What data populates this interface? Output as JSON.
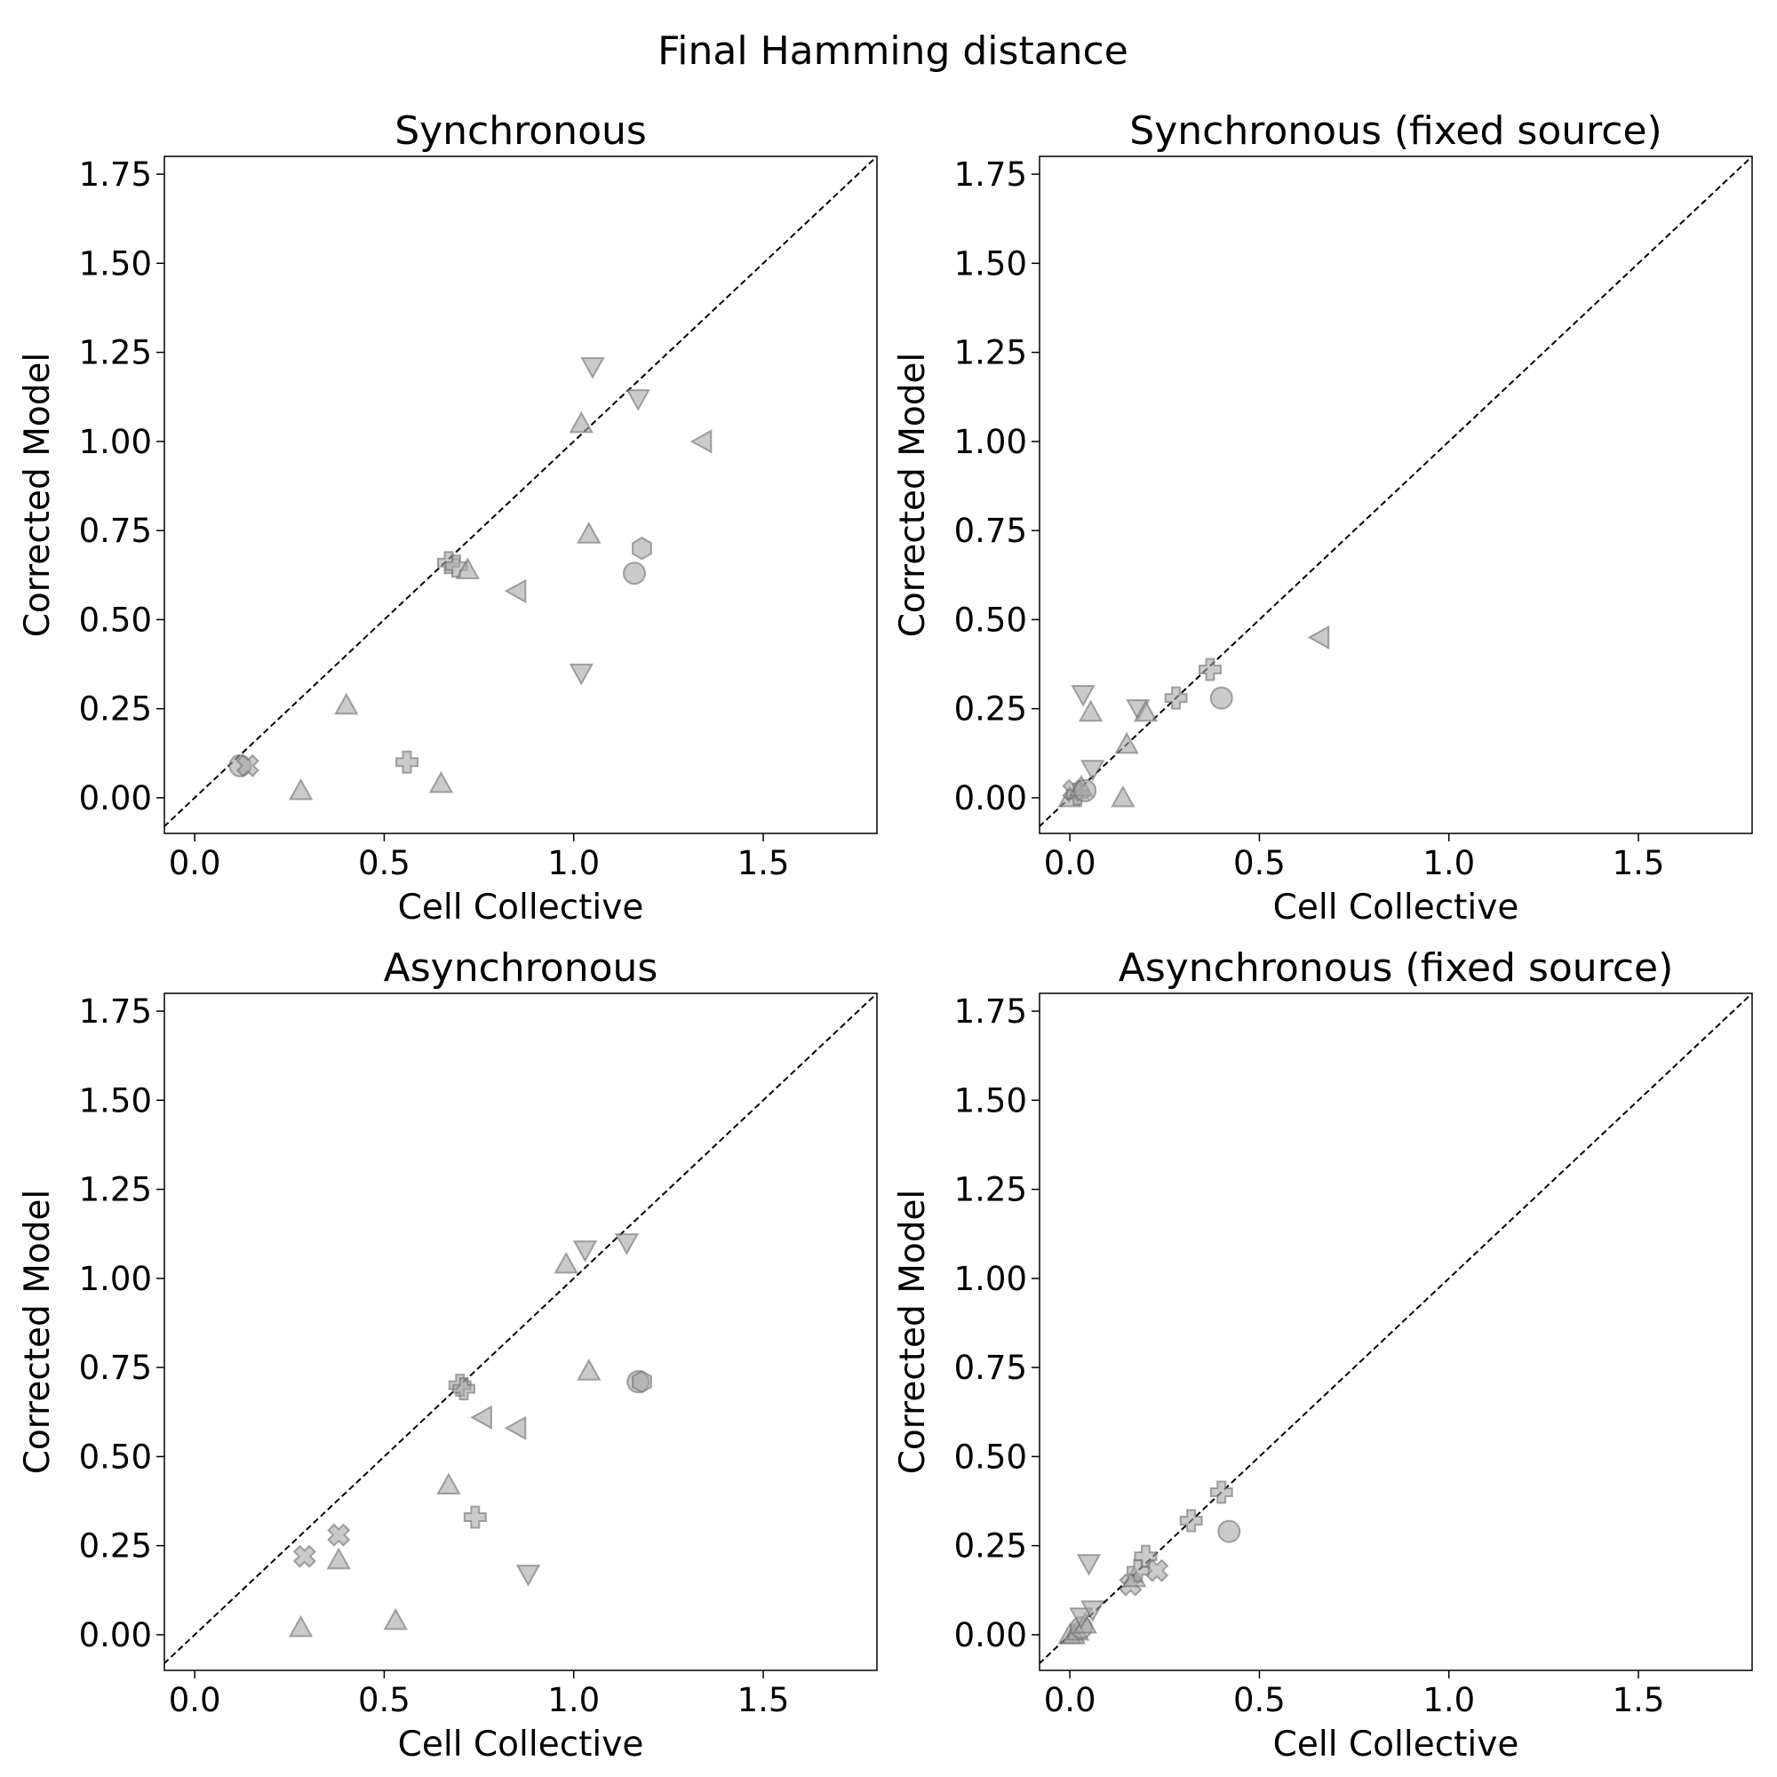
{
  "suptitle": "Final Hamming distance",
  "chart_data": [
    {
      "type": "scatter",
      "title": "Synchronous",
      "xlabel": "Cell Collective",
      "ylabel": "Corrected Model",
      "xlim": [
        -0.08,
        1.8
      ],
      "ylim": [
        -0.1,
        1.8
      ],
      "xticks": [
        "0.0",
        "0.5",
        "1.0",
        "1.5"
      ],
      "yticks": [
        "0.00",
        "0.25",
        "0.50",
        "0.75",
        "1.00",
        "1.25",
        "1.50",
        "1.75"
      ],
      "diagonal": "y = x (dashed)",
      "points": [
        {
          "x": 0.12,
          "y": 0.09,
          "marker": "circle"
        },
        {
          "x": 0.14,
          "y": 0.09,
          "marker": "x"
        },
        {
          "x": 0.28,
          "y": 0.02,
          "marker": "triangle-up"
        },
        {
          "x": 0.4,
          "y": 0.26,
          "marker": "triangle-up"
        },
        {
          "x": 0.56,
          "y": 0.1,
          "marker": "plus"
        },
        {
          "x": 0.65,
          "y": 0.04,
          "marker": "triangle-up"
        },
        {
          "x": 0.67,
          "y": 0.66,
          "marker": "plus"
        },
        {
          "x": 0.69,
          "y": 0.65,
          "marker": "plus"
        },
        {
          "x": 0.72,
          "y": 0.64,
          "marker": "triangle-up"
        },
        {
          "x": 0.85,
          "y": 0.58,
          "marker": "triangle-left"
        },
        {
          "x": 1.02,
          "y": 0.35,
          "marker": "triangle-down"
        },
        {
          "x": 1.02,
          "y": 1.05,
          "marker": "triangle-up"
        },
        {
          "x": 1.04,
          "y": 0.74,
          "marker": "triangle-up"
        },
        {
          "x": 1.05,
          "y": 1.21,
          "marker": "triangle-down"
        },
        {
          "x": 1.16,
          "y": 0.63,
          "marker": "circle"
        },
        {
          "x": 1.17,
          "y": 1.12,
          "marker": "triangle-down"
        },
        {
          "x": 1.18,
          "y": 0.7,
          "marker": "hexagon"
        },
        {
          "x": 1.34,
          "y": 1.0,
          "marker": "triangle-left"
        }
      ]
    },
    {
      "type": "scatter",
      "title": "Synchronous (fixed source)",
      "xlabel": "Cell Collective",
      "ylabel": "Corrected Model",
      "xlim": [
        -0.08,
        1.8
      ],
      "ylim": [
        -0.1,
        1.8
      ],
      "xticks": [
        "0.0",
        "0.5",
        "1.0",
        "1.5"
      ],
      "yticks": [
        "0.00",
        "0.25",
        "0.50",
        "0.75",
        "1.00",
        "1.25",
        "1.50",
        "1.75"
      ],
      "diagonal": "y = x (dashed)",
      "points": [
        {
          "x": 0.0,
          "y": 0.0,
          "marker": "triangle-up"
        },
        {
          "x": 0.01,
          "y": 0.02,
          "marker": "x"
        },
        {
          "x": 0.02,
          "y": 0.01,
          "marker": "plus"
        },
        {
          "x": 0.03,
          "y": 0.03,
          "marker": "triangle-up"
        },
        {
          "x": 0.04,
          "y": 0.02,
          "marker": "circle"
        },
        {
          "x": 0.035,
          "y": 0.29,
          "marker": "triangle-down"
        },
        {
          "x": 0.055,
          "y": 0.24,
          "marker": "triangle-up"
        },
        {
          "x": 0.06,
          "y": 0.08,
          "marker": "triangle-down"
        },
        {
          "x": 0.14,
          "y": 0.0,
          "marker": "triangle-up"
        },
        {
          "x": 0.15,
          "y": 0.15,
          "marker": "triangle-up"
        },
        {
          "x": 0.18,
          "y": 0.25,
          "marker": "triangle-down"
        },
        {
          "x": 0.2,
          "y": 0.24,
          "marker": "triangle-up"
        },
        {
          "x": 0.28,
          "y": 0.28,
          "marker": "plus"
        },
        {
          "x": 0.37,
          "y": 0.36,
          "marker": "plus"
        },
        {
          "x": 0.4,
          "y": 0.28,
          "marker": "circle"
        },
        {
          "x": 0.66,
          "y": 0.45,
          "marker": "triangle-left"
        }
      ]
    },
    {
      "type": "scatter",
      "title": "Asynchronous",
      "xlabel": "Cell Collective",
      "ylabel": "Corrected Model",
      "xlim": [
        -0.08,
        1.8
      ],
      "ylim": [
        -0.1,
        1.8
      ],
      "xticks": [
        "0.0",
        "0.5",
        "1.0",
        "1.5"
      ],
      "yticks": [
        "0.00",
        "0.25",
        "0.50",
        "0.75",
        "1.00",
        "1.25",
        "1.50",
        "1.75"
      ],
      "diagonal": "y = x (dashed)",
      "points": [
        {
          "x": 0.28,
          "y": 0.02,
          "marker": "triangle-up"
        },
        {
          "x": 0.29,
          "y": 0.22,
          "marker": "x"
        },
        {
          "x": 0.38,
          "y": 0.21,
          "marker": "triangle-up"
        },
        {
          "x": 0.38,
          "y": 0.28,
          "marker": "x"
        },
        {
          "x": 0.53,
          "y": 0.04,
          "marker": "triangle-up"
        },
        {
          "x": 0.67,
          "y": 0.42,
          "marker": "triangle-up"
        },
        {
          "x": 0.7,
          "y": 0.7,
          "marker": "plus"
        },
        {
          "x": 0.71,
          "y": 0.69,
          "marker": "plus"
        },
        {
          "x": 0.74,
          "y": 0.33,
          "marker": "plus"
        },
        {
          "x": 0.76,
          "y": 0.61,
          "marker": "triangle-left"
        },
        {
          "x": 0.85,
          "y": 0.58,
          "marker": "triangle-left"
        },
        {
          "x": 0.88,
          "y": 0.17,
          "marker": "triangle-down"
        },
        {
          "x": 0.98,
          "y": 1.04,
          "marker": "triangle-up"
        },
        {
          "x": 1.03,
          "y": 1.08,
          "marker": "triangle-down"
        },
        {
          "x": 1.04,
          "y": 0.74,
          "marker": "triangle-up"
        },
        {
          "x": 1.14,
          "y": 1.1,
          "marker": "triangle-down"
        },
        {
          "x": 1.17,
          "y": 0.71,
          "marker": "circle"
        },
        {
          "x": 1.18,
          "y": 0.71,
          "marker": "hexagon"
        }
      ]
    },
    {
      "type": "scatter",
      "title": "Asynchronous (fixed source)",
      "xlabel": "Cell Collective",
      "ylabel": "Corrected Model",
      "xlim": [
        -0.08,
        1.8
      ],
      "ylim": [
        -0.1,
        1.8
      ],
      "xticks": [
        "0.0",
        "0.5",
        "1.0",
        "1.5"
      ],
      "yticks": [
        "0.00",
        "0.25",
        "0.50",
        "0.75",
        "1.00",
        "1.25",
        "1.50",
        "1.75"
      ],
      "diagonal": "y = x (dashed)",
      "points": [
        {
          "x": 0.0,
          "y": 0.0,
          "marker": "triangle-up"
        },
        {
          "x": 0.01,
          "y": 0.0,
          "marker": "triangle-up"
        },
        {
          "x": 0.02,
          "y": 0.01,
          "marker": "triangle-up"
        },
        {
          "x": 0.03,
          "y": 0.02,
          "marker": "circle"
        },
        {
          "x": 0.04,
          "y": 0.03,
          "marker": "triangle-up"
        },
        {
          "x": 0.05,
          "y": 0.2,
          "marker": "triangle-down"
        },
        {
          "x": 0.03,
          "y": 0.05,
          "marker": "triangle-down"
        },
        {
          "x": 0.06,
          "y": 0.07,
          "marker": "triangle-down"
        },
        {
          "x": 0.16,
          "y": 0.14,
          "marker": "x"
        },
        {
          "x": 0.17,
          "y": 0.16,
          "marker": "triangle-up"
        },
        {
          "x": 0.18,
          "y": 0.18,
          "marker": "plus"
        },
        {
          "x": 0.2,
          "y": 0.22,
          "marker": "plus"
        },
        {
          "x": 0.23,
          "y": 0.18,
          "marker": "x"
        },
        {
          "x": 0.32,
          "y": 0.32,
          "marker": "plus"
        },
        {
          "x": 0.4,
          "y": 0.4,
          "marker": "plus"
        },
        {
          "x": 0.42,
          "y": 0.29,
          "marker": "circle"
        }
      ]
    }
  ],
  "colors": {
    "marker_fill": "#a6a6a6",
    "marker_edge": "#6e6e6e",
    "axis": "#000000",
    "diagonal": "#000000"
  }
}
